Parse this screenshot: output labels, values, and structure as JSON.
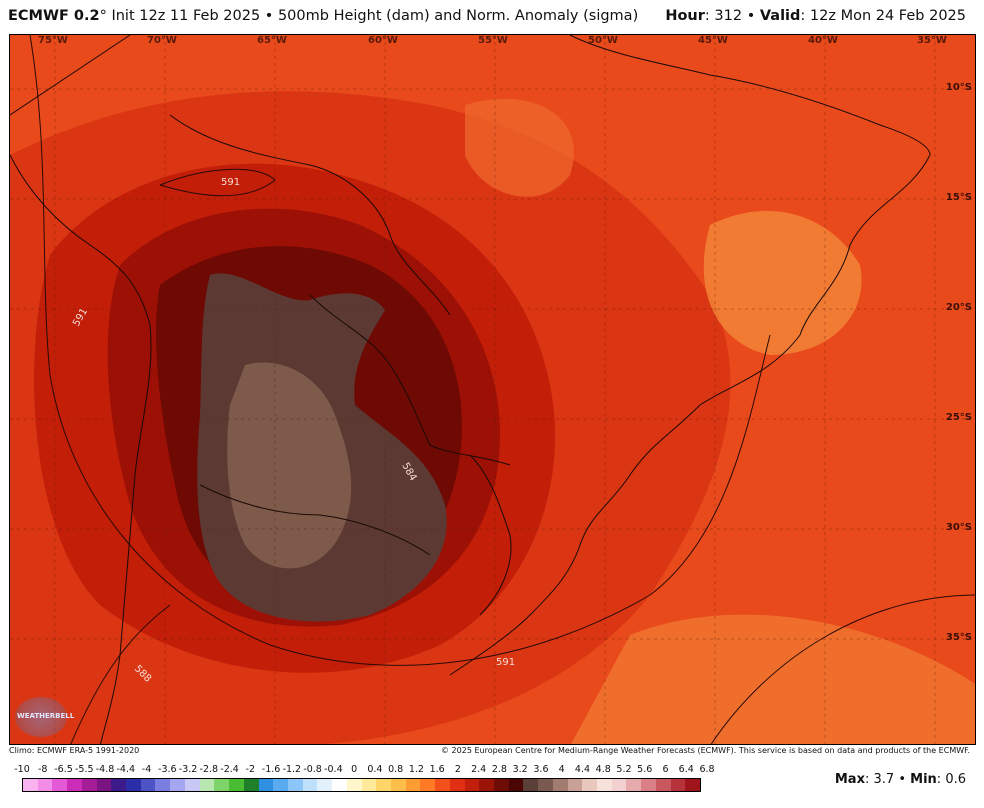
{
  "header": {
    "model": "ECMWF 0.2",
    "degree": "°",
    "init": "Init 12z 11 Feb 2025",
    "separator": "•",
    "product": "500mb Height (dam) and Norm. Anomaly (sigma)",
    "hour_label": "Hour",
    "hour_value": ": 312",
    "valid_label": "Valid",
    "valid_value": ": 12z Mon 24 Feb 2025"
  },
  "map": {
    "lon_labels": [
      "75°W",
      "70°W",
      "65°W",
      "60°W",
      "55°W",
      "50°W",
      "45°W",
      "40°W",
      "35°W"
    ],
    "lat_labels": [
      "10°S",
      "15°S",
      "20°S",
      "25°S",
      "30°S",
      "35°S"
    ],
    "contour_labels": [
      "591",
      "591",
      "591",
      "584",
      "588"
    ],
    "logo_text": "WEATHERBELL"
  },
  "footer": {
    "climo": "Climo: ECMWF ERA-5 1991-2020",
    "copyright": "© 2025 European Centre for Medium-Range Weather Forecasts (ECMWF). This service is based on data and products of the ECMWF."
  },
  "colorbar": {
    "ticks": [
      "-10",
      "-8",
      "-6.5",
      "-5.5",
      "-4.8",
      "-4.4",
      "-4",
      "-3.6",
      "-3.2",
      "-2.8",
      "-2.4",
      "-2",
      "-1.6",
      "-1.2",
      "-0.8",
      "-0.4",
      "0",
      "0.4",
      "0.8",
      "1.2",
      "1.6",
      "2",
      "2.4",
      "2.8",
      "3.2",
      "3.6",
      "4",
      "4.4",
      "4.8",
      "5.2",
      "5.6",
      "6",
      "6.4",
      "6.8"
    ],
    "colors": [
      "#f9b3f0",
      "#f28ce6",
      "#e45ad6",
      "#cc2db8",
      "#a61d98",
      "#7a1480",
      "#3d1a8a",
      "#2a2ea8",
      "#4c54c6",
      "#7a7ee0",
      "#a6a6f0",
      "#c8c8f7",
      "#b8e6b0",
      "#7ed46a",
      "#4bbd35",
      "#1f7f2a",
      "#2f8fe0",
      "#5aaaf0",
      "#8cc5f7",
      "#bfe0fb",
      "#e3f1fd",
      "#ffffff",
      "#fff6cc",
      "#ffe99a",
      "#ffd56a",
      "#ffbd4a",
      "#ff9d33",
      "#ff7a24",
      "#f2511b",
      "#e02f12",
      "#c11f0b",
      "#9c1408",
      "#6e0d05",
      "#4a0603",
      "#5b4039",
      "#7a5a50",
      "#a37c70",
      "#c9a095",
      "#e8c7bd",
      "#f7e2db",
      "#f2cfd1",
      "#e6a9ac",
      "#d88085",
      "#c8575e",
      "#b7333b",
      "#a0141c"
    ],
    "max_label": "Max",
    "max_value": "3.7",
    "min_label": "Min",
    "min_value": "0.6"
  },
  "colors": {
    "warm_outer": "#e8491d",
    "warm_mid": "#c41c07",
    "warm_inner": "#8e0c03",
    "core": "#5c3a33",
    "core_light": "#83604f",
    "east_light": "#f2873a"
  }
}
